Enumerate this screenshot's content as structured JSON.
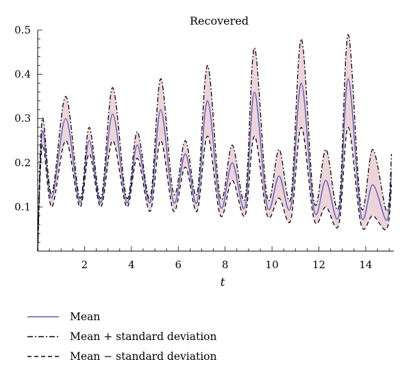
{
  "chart_data": {
    "type": "line",
    "title": "Recovered",
    "xlabel": "t",
    "ylabel": "",
    "xlim": [
      0,
      15.1
    ],
    "ylim": [
      0,
      0.5
    ],
    "xticks": [
      2,
      4,
      6,
      8,
      10,
      12,
      14
    ],
    "xtick_labels": [
      "2",
      "4",
      "6",
      "8",
      "10",
      "12",
      "14"
    ],
    "yticks": [
      0.1,
      0.2,
      0.3,
      0.4,
      0.5
    ],
    "ytick_labels": [
      "0.1",
      "0.2",
      "0.3",
      "0.4",
      "0.5"
    ],
    "grid": false,
    "legend_position": "below",
    "series": [
      {
        "name": "Mean",
        "style": "solid",
        "color": "#5b5bb5",
        "x": [
          0,
          0.2,
          0.6,
          1.2,
          1.8,
          2.2,
          2.7,
          3.2,
          3.8,
          4.25,
          4.8,
          5.25,
          5.8,
          6.3,
          6.8,
          7.25,
          7.8,
          8.3,
          8.85,
          9.25,
          9.8,
          10.3,
          10.8,
          11.25,
          11.8,
          12.3,
          12.85,
          13.25,
          13.8,
          14.3,
          14.9,
          15.1
        ],
        "y": [
          0,
          0.27,
          0.12,
          0.3,
          0.11,
          0.25,
          0.11,
          0.31,
          0.11,
          0.24,
          0.11,
          0.32,
          0.11,
          0.22,
          0.11,
          0.34,
          0.1,
          0.2,
          0.1,
          0.36,
          0.1,
          0.17,
          0.1,
          0.38,
          0.09,
          0.16,
          0.08,
          0.39,
          0.08,
          0.15,
          0.07,
          0.18
        ]
      },
      {
        "name": "Mean + standard deviation",
        "style": "dash-dot",
        "color": "#000000",
        "x": [
          0,
          0.2,
          0.6,
          1.2,
          1.8,
          2.2,
          2.7,
          3.2,
          3.8,
          4.25,
          4.8,
          5.25,
          5.8,
          6.3,
          6.8,
          7.25,
          7.8,
          8.3,
          8.85,
          9.25,
          9.8,
          10.3,
          10.8,
          11.25,
          11.8,
          12.3,
          12.85,
          13.25,
          13.8,
          14.3,
          14.9,
          15.1
        ],
        "y": [
          0,
          0.3,
          0.13,
          0.35,
          0.12,
          0.28,
          0.12,
          0.37,
          0.12,
          0.27,
          0.12,
          0.39,
          0.13,
          0.25,
          0.13,
          0.42,
          0.12,
          0.24,
          0.12,
          0.46,
          0.12,
          0.23,
          0.12,
          0.48,
          0.11,
          0.23,
          0.1,
          0.49,
          0.1,
          0.23,
          0.09,
          0.22
        ]
      },
      {
        "name": "Mean − standard deviation",
        "style": "dashed",
        "color": "#000000",
        "x": [
          0,
          0.2,
          0.6,
          1.2,
          1.8,
          2.2,
          2.7,
          3.2,
          3.8,
          4.25,
          4.8,
          5.25,
          5.8,
          6.3,
          6.8,
          7.25,
          7.8,
          8.3,
          8.85,
          9.25,
          9.8,
          10.3,
          10.8,
          11.25,
          11.8,
          12.3,
          12.85,
          13.25,
          13.8,
          14.3,
          14.9,
          15.1
        ],
        "y": [
          0,
          0.24,
          0.1,
          0.25,
          0.1,
          0.22,
          0.1,
          0.25,
          0.1,
          0.21,
          0.09,
          0.25,
          0.09,
          0.19,
          0.09,
          0.26,
          0.08,
          0.16,
          0.08,
          0.26,
          0.08,
          0.12,
          0.07,
          0.28,
          0.07,
          0.1,
          0.06,
          0.28,
          0.06,
          0.08,
          0.05,
          0.15
        ]
      }
    ],
    "band": {
      "between": [
        "Mean + standard deviation",
        "Mean − standard deviation"
      ],
      "color": "#ecd4da"
    }
  }
}
